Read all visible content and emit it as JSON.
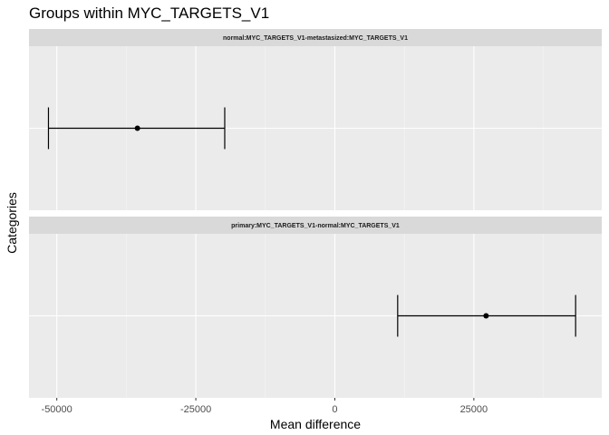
{
  "chart_data": {
    "type": "errorbar",
    "title": "Groups within MYC_TARGETS_V1",
    "xlabel": "Mean difference",
    "ylabel": "Categories",
    "xlim": [
      -55000,
      48000
    ],
    "x_ticks": [
      -50000,
      -25000,
      0,
      25000
    ],
    "x_tick_labels": [
      "-50000",
      "-25000",
      "0",
      "25000"
    ],
    "grid": true,
    "panels": [
      {
        "label": "normal:MYC_TARGETS_V1-metastasized:MYC_TARGETS_V1",
        "mean": -35500,
        "lower": -51500,
        "upper": -19800
      },
      {
        "label": "primary:MYC_TARGETS_V1-normal:MYC_TARGETS_V1",
        "mean": 27200,
        "lower": 11300,
        "upper": 43300
      }
    ]
  }
}
